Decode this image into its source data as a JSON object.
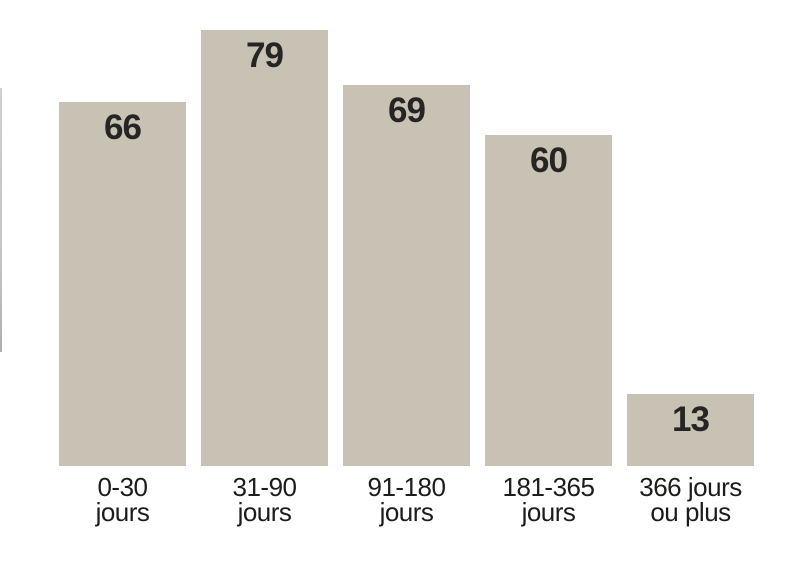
{
  "page": {
    "background": "#ffffff"
  },
  "artifacts": {
    "left_edge_line": {
      "color_top": "#d3d0cb",
      "color_bottom": "#b1aea9"
    }
  },
  "chart_data": {
    "type": "bar",
    "title": "",
    "xlabel": "",
    "ylabel": "",
    "categories": [
      "0-30 jours",
      "31-90 jours",
      "91-180 jours",
      "181-365 jours",
      "366 jours ou plus"
    ],
    "category_lines": [
      [
        "0-30",
        "jours"
      ],
      [
        "31-90",
        "jours"
      ],
      [
        "91-180",
        "jours"
      ],
      [
        "181-365",
        "jours"
      ],
      [
        "366 jours",
        "ou plus"
      ]
    ],
    "values": [
      66,
      79,
      69,
      60,
      13
    ],
    "ylim": [
      0,
      84
    ],
    "grid": false,
    "legend": "none",
    "value_labels_shown": true,
    "bar_color": "#c8c2b5",
    "value_label_color": "#262523",
    "tick_label_color": "#1c1c1a",
    "background": "#ffffff"
  }
}
